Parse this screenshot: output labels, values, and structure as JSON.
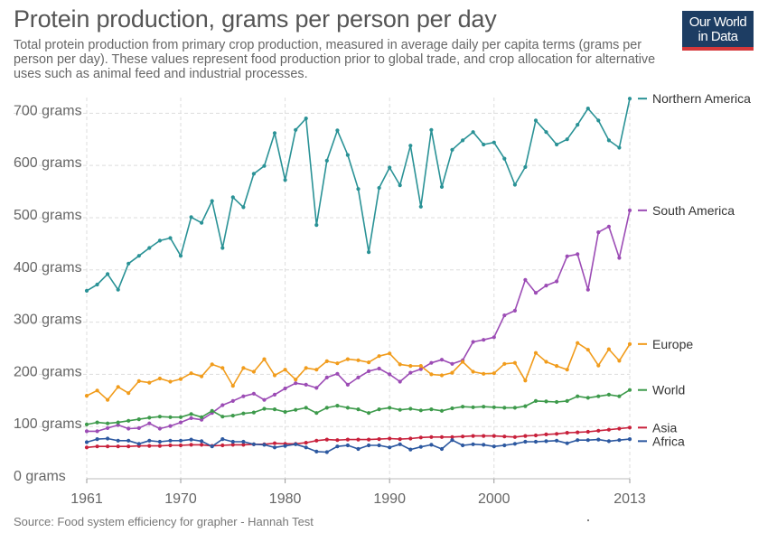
{
  "header": {
    "title": "Protein production, grams per person per day",
    "subtitle": "Total protein production from primary crop production, measured in average daily per capita terms (grams per person per day). These values represent food production prior to global trade, and crop allocation for alternative uses such as animal feed and industrial processes.",
    "logo_line1": "Our World",
    "logo_line2": "in Data"
  },
  "footer": {
    "source": "Source: Food system efficiency for grapher - Hannah Test"
  },
  "chart_data": {
    "type": "line",
    "title": "Protein production, grams per person per day",
    "xlabel": "",
    "ylabel": "",
    "xlim": [
      1961,
      2013
    ],
    "ylim": [
      0,
      730
    ],
    "y_ticks": [
      {
        "value": 0,
        "label": "0 grams"
      },
      {
        "value": 100,
        "label": "100 grams"
      },
      {
        "value": 200,
        "label": "200 grams"
      },
      {
        "value": 300,
        "label": "300 grams"
      },
      {
        "value": 400,
        "label": "400 grams"
      },
      {
        "value": 500,
        "label": "500 grams"
      },
      {
        "value": 600,
        "label": "600 grams"
      },
      {
        "value": 700,
        "label": "700 grams"
      }
    ],
    "x_ticks": [
      {
        "value": 1961,
        "label": "1961"
      },
      {
        "value": 1970,
        "label": "1970"
      },
      {
        "value": 1980,
        "label": "1980"
      },
      {
        "value": 1990,
        "label": "1990"
      },
      {
        "value": 2000,
        "label": "2000"
      },
      {
        "value": 2013,
        "label": "2013"
      }
    ],
    "grid": true,
    "legend": "right-end-labels",
    "x_start": 1961,
    "series": [
      {
        "name": "Northern America",
        "color": "#2a9296",
        "values": [
          360,
          372,
          392,
          362,
          412,
          427,
          442,
          456,
          461,
          427,
          501,
          490,
          532,
          442,
          539,
          520,
          584,
          599,
          662,
          572,
          668,
          690,
          486,
          609,
          667,
          620,
          555,
          434,
          557,
          596,
          562,
          638,
          521,
          668,
          559,
          630,
          648,
          664,
          640,
          644,
          613,
          563,
          597,
          686,
          664,
          640,
          650,
          678,
          709,
          686,
          648,
          634,
          728
        ]
      },
      {
        "name": "South America",
        "color": "#9c4cb5",
        "values": [
          91,
          91,
          97,
          103,
          96,
          97,
          106,
          96,
          101,
          108,
          116,
          113,
          126,
          141,
          149,
          158,
          163,
          151,
          161,
          173,
          183,
          180,
          174,
          194,
          201,
          180,
          194,
          206,
          211,
          200,
          186,
          203,
          210,
          222,
          228,
          220,
          227,
          262,
          266,
          271,
          313,
          322,
          381,
          356,
          370,
          378,
          426,
          430,
          362,
          472,
          483,
          423,
          514
        ]
      },
      {
        "name": "Europe",
        "color": "#f19c1c",
        "values": [
          159,
          169,
          151,
          176,
          164,
          187,
          184,
          192,
          186,
          191,
          202,
          196,
          219,
          212,
          178,
          212,
          205,
          229,
          198,
          209,
          190,
          212,
          209,
          225,
          221,
          229,
          227,
          223,
          235,
          240,
          219,
          216,
          216,
          200,
          198,
          203,
          224,
          205,
          201,
          202,
          220,
          222,
          188,
          241,
          224,
          216,
          209,
          260,
          247,
          217,
          248,
          226,
          258
        ]
      },
      {
        "name": "World",
        "color": "#3d9a4b",
        "values": [
          104,
          108,
          106,
          108,
          111,
          114,
          117,
          119,
          118,
          118,
          124,
          118,
          130,
          119,
          121,
          125,
          127,
          134,
          133,
          128,
          132,
          136,
          126,
          136,
          140,
          136,
          133,
          126,
          133,
          136,
          132,
          134,
          131,
          133,
          130,
          135,
          138,
          137,
          138,
          137,
          136,
          136,
          139,
          149,
          148,
          147,
          149,
          158,
          155,
          158,
          161,
          158,
          170
        ]
      },
      {
        "name": "Asia",
        "color": "#c8203b",
        "values": [
          60,
          62,
          62,
          62,
          62,
          63,
          63,
          63,
          64,
          64,
          65,
          65,
          63,
          64,
          65,
          65,
          66,
          66,
          68,
          67,
          67,
          69,
          73,
          75,
          74,
          75,
          75,
          75,
          76,
          77,
          76,
          77,
          79,
          80,
          80,
          80,
          81,
          82,
          82,
          82,
          81,
          80,
          82,
          83,
          85,
          86,
          88,
          89,
          90,
          92,
          94,
          96,
          98
        ]
      },
      {
        "name": "Africa",
        "color": "#2c58a0",
        "values": [
          70,
          76,
          77,
          73,
          73,
          67,
          73,
          71,
          73,
          73,
          75,
          72,
          62,
          76,
          71,
          71,
          66,
          65,
          60,
          63,
          66,
          60,
          52,
          51,
          62,
          64,
          57,
          64,
          64,
          60,
          66,
          56,
          61,
          65,
          57,
          74,
          64,
          66,
          65,
          62,
          64,
          67,
          71,
          71,
          72,
          73,
          68,
          74,
          74,
          75,
          72,
          74,
          76
        ]
      }
    ]
  }
}
